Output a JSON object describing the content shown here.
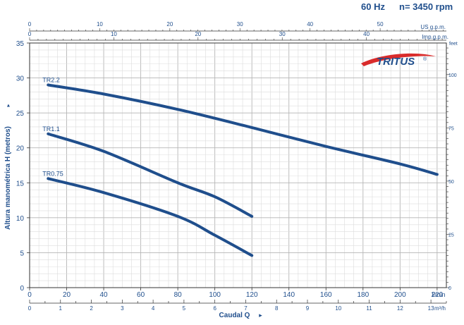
{
  "header": {
    "frequency": "60 Hz",
    "speed": "n= 3450 rpm"
  },
  "brand": {
    "name": "TRITUS",
    "mark": "®"
  },
  "colors": {
    "curve": "#1f4e8c",
    "grid": "#c8c8c8",
    "text": "#1f4e8c",
    "logo_red": "#d92b2b"
  },
  "chart_data": {
    "type": "line",
    "xlabel": "Caudal  Q",
    "ylabel": "Altura manométrica H (metros)",
    "xlim": [
      0,
      225
    ],
    "ylim": [
      0,
      35
    ],
    "x_unit": "l/min",
    "y_unit": "",
    "grid": true,
    "x_ticks": [
      0,
      20,
      40,
      60,
      80,
      100,
      120,
      140,
      160,
      180,
      200,
      220
    ],
    "y_ticks": [
      0,
      5,
      10,
      15,
      20,
      25,
      30,
      35
    ],
    "secondary_axes": {
      "m3h": {
        "label": "m³/h",
        "ticks": [
          0,
          1,
          2,
          3,
          4,
          5,
          6,
          7,
          8,
          9,
          10,
          11,
          12,
          13
        ]
      },
      "us_gpm": {
        "label": "US g.p.m.",
        "ticks": [
          0,
          10,
          20,
          30,
          40,
          50
        ]
      },
      "imp_gpm": {
        "label": "Imp.g.p.m.",
        "ticks": [
          0,
          10,
          20,
          30,
          40
        ]
      },
      "feet": {
        "label": "feet",
        "ticks": [
          0,
          25,
          50,
          75,
          100
        ]
      }
    },
    "series": [
      {
        "name": "TR2.2",
        "x": [
          10,
          40,
          80,
          120,
          160,
          200,
          220
        ],
        "y": [
          29,
          27.7,
          25.5,
          22.9,
          20.2,
          17.7,
          16.2
        ]
      },
      {
        "name": "TR1.1",
        "x": [
          10,
          40,
          80,
          100,
          120
        ],
        "y": [
          22,
          19.5,
          15,
          13,
          10.2
        ]
      },
      {
        "name": "TR0.75",
        "x": [
          10,
          40,
          80,
          100,
          120
        ],
        "y": [
          15.6,
          13.6,
          10.2,
          7.5,
          4.6
        ]
      }
    ]
  }
}
